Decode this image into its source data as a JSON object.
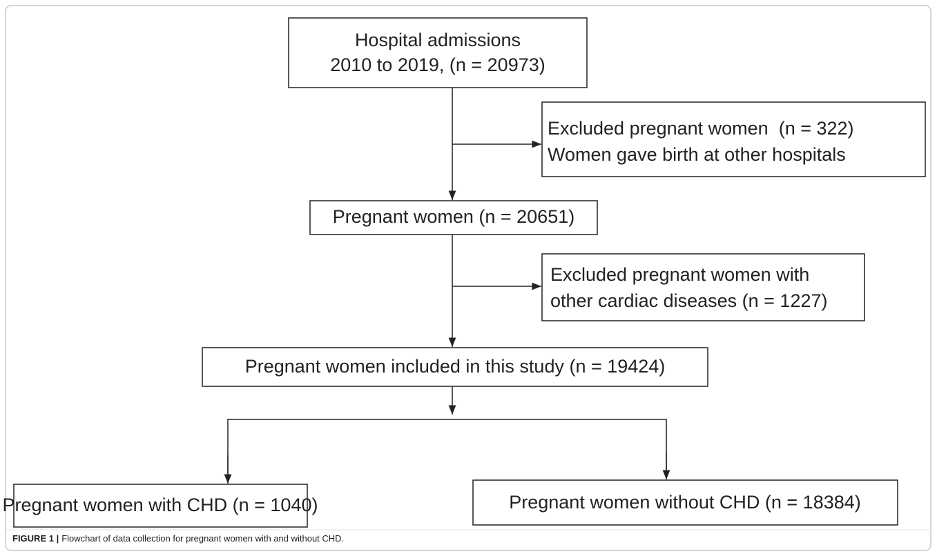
{
  "nodes": [
    {
      "lines": [
        "Hospital admissions",
        "2010 to 2019, (n = 20973)"
      ]
    },
    {
      "lines": [
        "Excluded pregnant women  (n = 322)",
        "Women gave birth at other hospitals"
      ]
    },
    {
      "lines": [
        "Pregnant women (n = 20651)"
      ]
    },
    {
      "lines": [
        "Excluded pregnant women with",
        "other cardiac diseases (n = 1227)"
      ]
    },
    {
      "lines": [
        "Pregnant women included in this study (n = 19424)"
      ]
    },
    {
      "lines": [
        "Pregnant women with CHD (n = 1040)"
      ]
    },
    {
      "lines": [
        "Pregnant women without CHD (n = 18384)"
      ]
    }
  ],
  "caption": {
    "label": "FIGURE 1 |",
    "text": "Flowchart of data collection for pregnant women with and without CHD."
  }
}
